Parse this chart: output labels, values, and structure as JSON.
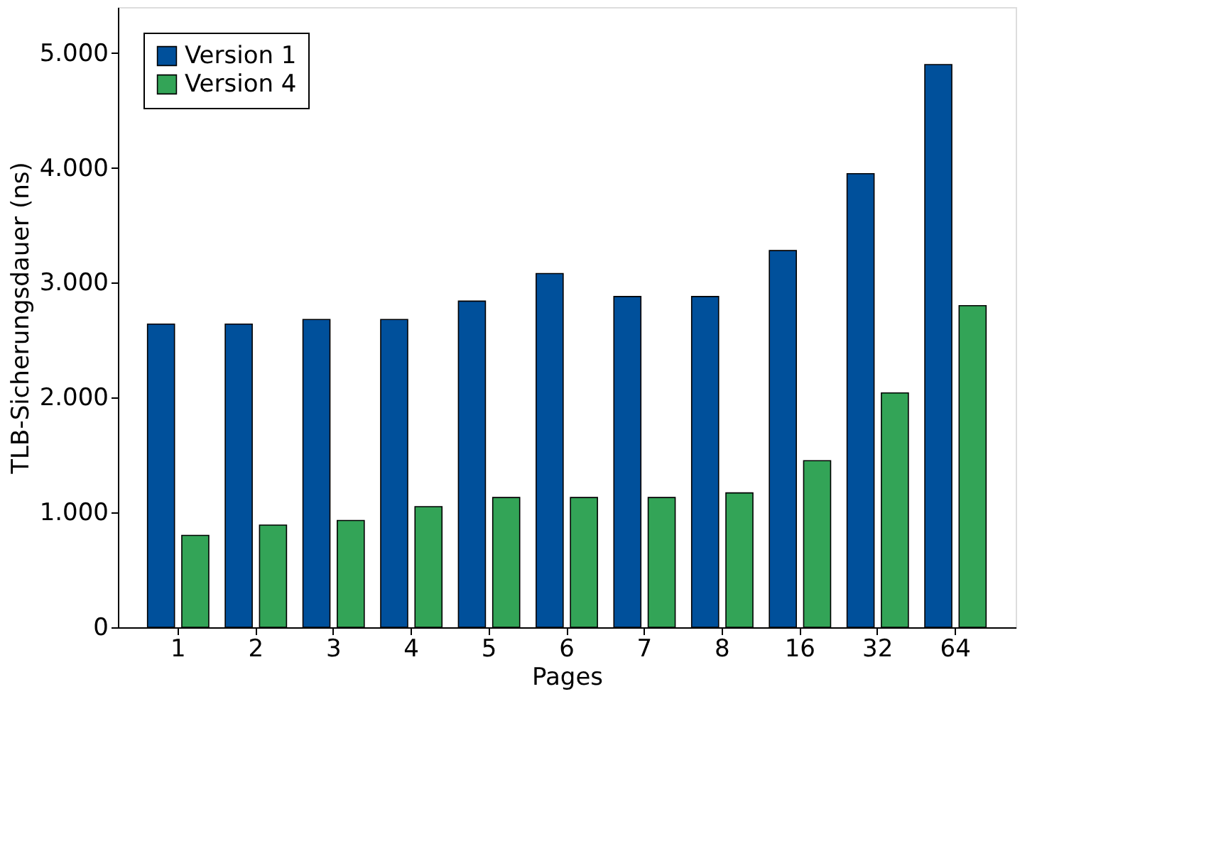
{
  "chart_data": {
    "type": "bar",
    "xlabel": "Pages",
    "ylabel": "TLB-Sicherungsdauer (ns)",
    "categories": [
      "1",
      "2",
      "3",
      "4",
      "5",
      "6",
      "7",
      "8",
      "16",
      "32",
      "64"
    ],
    "series": [
      {
        "name": "Version 1",
        "color": "#00509b",
        "values": [
          2640,
          2640,
          2680,
          2680,
          2840,
          3080,
          2880,
          2880,
          3280,
          3950,
          4900
        ]
      },
      {
        "name": "Version 4",
        "color": "#33a457",
        "values": [
          800,
          890,
          930,
          1050,
          1130,
          1130,
          1130,
          1170,
          1450,
          2040,
          2800
        ]
      }
    ],
    "ylim": [
      0,
      5400
    ],
    "yticks": [
      0,
      {
        "value": 1000,
        "label": "1.000"
      },
      {
        "value": 2000,
        "label": "2.000"
      },
      {
        "value": 3000,
        "label": "3.000"
      },
      {
        "value": 4000,
        "label": "4.000"
      },
      {
        "value": 5000,
        "label": "5.000"
      }
    ],
    "grid": false,
    "legend": "top left"
  }
}
